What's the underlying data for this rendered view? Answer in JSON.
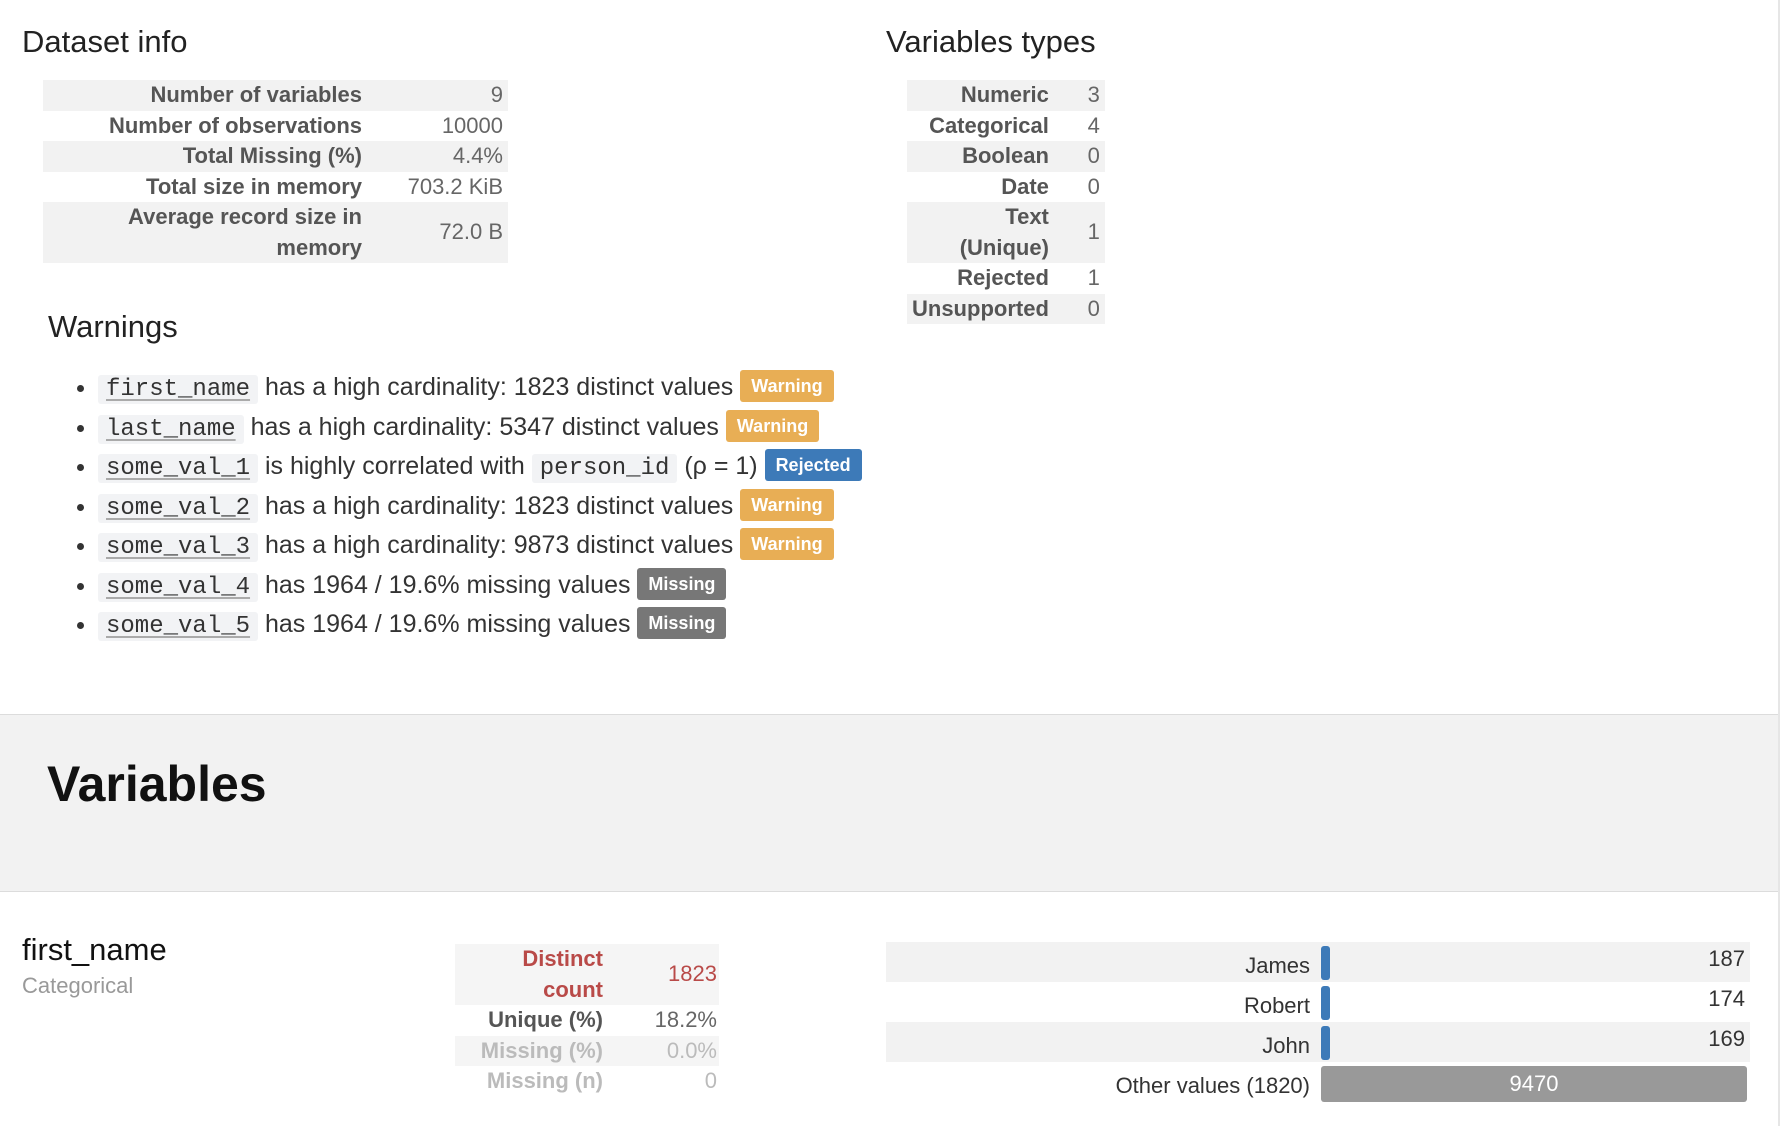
{
  "dataset_info": {
    "title": "Dataset info",
    "rows": [
      {
        "label": "Number of variables",
        "value": "9"
      },
      {
        "label": "Number of observations",
        "value": "10000"
      },
      {
        "label": "Total Missing (%)",
        "value": "4.4%"
      },
      {
        "label": "Total size in memory",
        "value": "703.2 KiB"
      },
      {
        "label": "Average record size in memory",
        "value": "72.0 B"
      }
    ]
  },
  "variable_types": {
    "title": "Variables types",
    "rows": [
      {
        "label": "Numeric",
        "value": "3"
      },
      {
        "label": "Categorical",
        "value": "4"
      },
      {
        "label": "Boolean",
        "value": "0"
      },
      {
        "label": "Date",
        "value": "0"
      },
      {
        "label": "Text (Unique)",
        "value": "1"
      },
      {
        "label": "Rejected",
        "value": "1"
      },
      {
        "label": "Unsupported",
        "value": "0"
      }
    ]
  },
  "warnings": {
    "title": "Warnings",
    "items": [
      {
        "var": "first_name",
        "text": " has a high cardinality: 1823 distinct values ",
        "label": "Warning"
      },
      {
        "var": "last_name",
        "text": " has a high cardinality: 5347 distinct values ",
        "label": "Warning"
      },
      {
        "var": "some_val_1",
        "text": " is highly correlated with ",
        "var2": "person_id",
        "text2": " (ρ = 1) ",
        "label": "Rejected"
      },
      {
        "var": "some_val_2",
        "text": " has a high cardinality: 1823 distinct values ",
        "label": "Warning"
      },
      {
        "var": "some_val_3",
        "text": " has a high cardinality: 9873 distinct values ",
        "label": "Warning"
      },
      {
        "var": "some_val_4",
        "text": " has 1964 / 19.6% missing values ",
        "label": "Missing"
      },
      {
        "var": "some_val_5",
        "text": " has 1964 / 19.6% missing values ",
        "label": "Missing"
      }
    ]
  },
  "variables_section": {
    "title": "Variables"
  },
  "variable": {
    "name": "first_name",
    "type": "Categorical",
    "stats": [
      {
        "label": "Distinct count",
        "value": "1823"
      },
      {
        "label": "Unique (%)",
        "value": "18.2%"
      },
      {
        "label": "Missing (%)",
        "value": "0.0%"
      },
      {
        "label": "Missing (n)",
        "value": "0"
      }
    ],
    "frequencies": [
      {
        "label": "James",
        "count": "187"
      },
      {
        "label": "Robert",
        "count": "174"
      },
      {
        "label": "John",
        "count": "169"
      },
      {
        "label": "Other values (1820)",
        "count": "9470"
      }
    ]
  },
  "colors": {
    "warning": "#e8ae55",
    "rejected": "#3d7ab8",
    "missing": "#777777",
    "alert_text": "#b94a48",
    "bar": "#3d7ab8",
    "other_bar": "#999999"
  }
}
